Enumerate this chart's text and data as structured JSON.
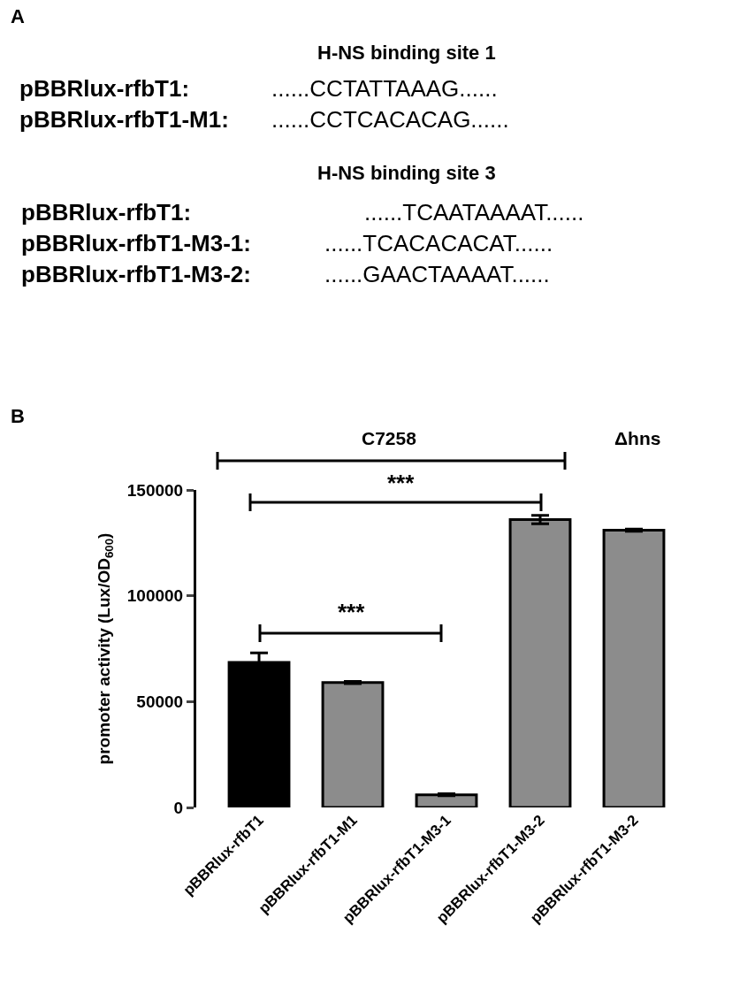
{
  "chart_data": {
    "type": "bar",
    "categories": [
      "pBBRlux-rfbT1",
      "pBBRlux-rfbT1-M1",
      "pBBRlux-rfbT1-M3-1",
      "pBBRlux-rfbT1-M3-2",
      "pBBRlux-rfbT1-M3-2"
    ],
    "values": [
      68500,
      59000,
      6000,
      136000,
      131000
    ],
    "errors": [
      4500,
      500,
      500,
      2000,
      500
    ],
    "colors": [
      "#000000",
      "#8c8c8c",
      "#8c8c8c",
      "#8c8c8c",
      "#8c8c8c"
    ],
    "ylabel": "promoter activity (Lux/OD$_{600}$)",
    "ylim": [
      0,
      150000
    ],
    "yticks": [
      0,
      50000,
      100000,
      150000
    ],
    "legend": false,
    "annotations": [
      "A",
      "H-NS binding site 1",
      "pBBRlux-rfbT1:",
      "......CCTATTAAAG......",
      "pBBRlux-rfbT1-M1:",
      "......CCTCACACAG......",
      "H-NS binding site 3",
      "pBBRlux-rfbT1:",
      "......TCAATAAAAT......",
      "pBBRlux-rfbT1-M3-1:",
      "......TCACACACAT......",
      "pBBRlux-rfbT1-M3-2:",
      "......GAACTAAAAT......",
      "B",
      "C7258",
      "Δhns",
      "***",
      "***"
    ]
  }
}
